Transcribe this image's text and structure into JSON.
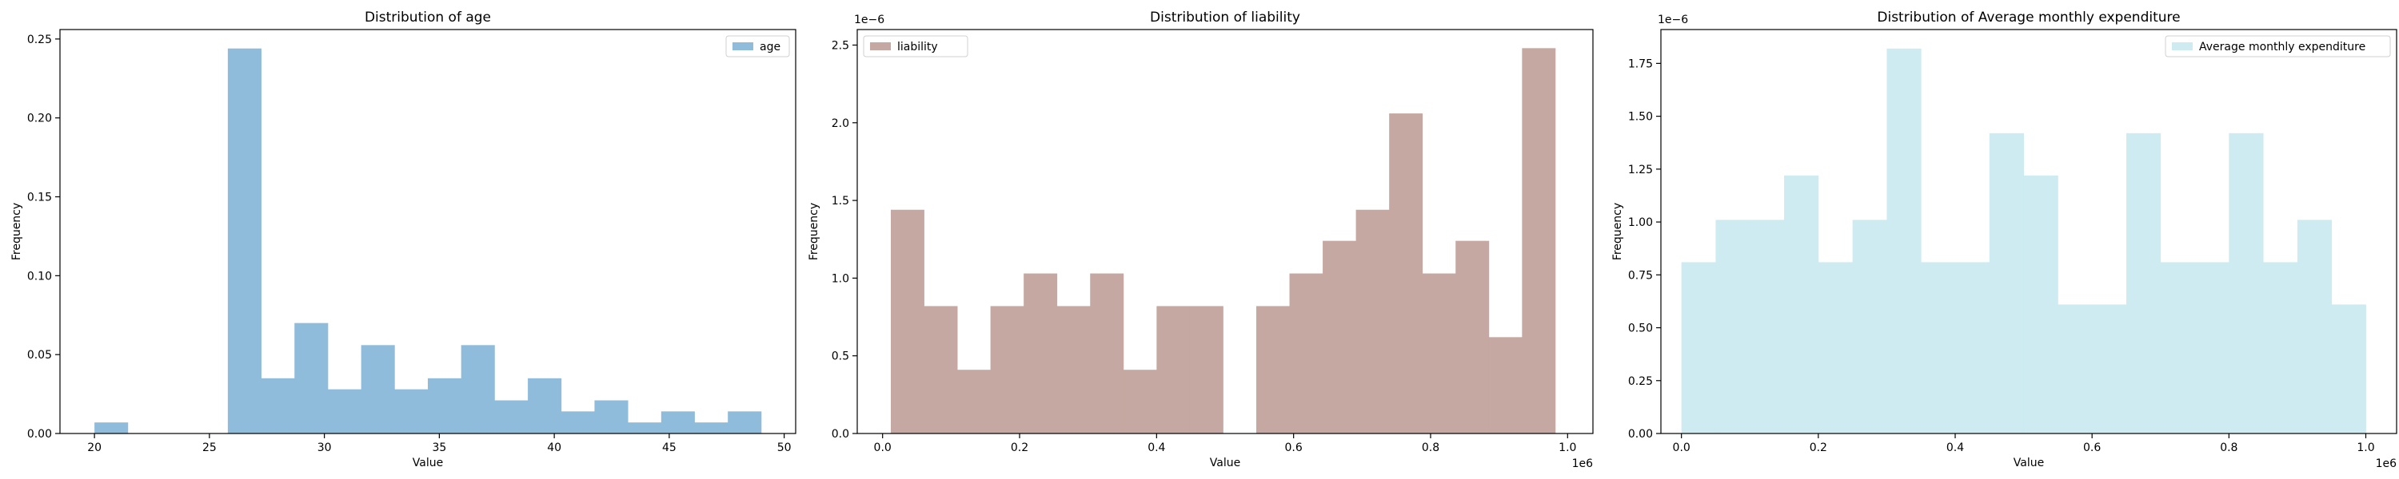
{
  "chart_data": [
    {
      "type": "bar",
      "title": "Distribution of age",
      "xlabel": "Value",
      "ylabel": "Frequency",
      "xlim": [
        18.5,
        50.5
      ],
      "ylim": [
        0,
        0.256
      ],
      "xticks": [
        20,
        25,
        30,
        35,
        40,
        45,
        50
      ],
      "xtick_labels": [
        "20",
        "25",
        "30",
        "35",
        "40",
        "45",
        "50"
      ],
      "yticks": [
        0,
        0.05,
        0.1,
        0.15,
        0.2,
        0.25
      ],
      "ytick_labels": [
        "0.00",
        "0.05",
        "0.10",
        "0.15",
        "0.20",
        "0.25"
      ],
      "x_offset_label": "",
      "y_offset_label": "",
      "legend_location": "top-right",
      "grid": false,
      "series": [
        {
          "name": "age",
          "color": "#8fbcdb",
          "bins": [
            20,
            21.45,
            22.9,
            24.35,
            25.8,
            27.25,
            28.7,
            30.15,
            31.6,
            33.05,
            34.5,
            35.95,
            37.4,
            38.85,
            40.3,
            41.75,
            43.2,
            44.65,
            46.1,
            47.55,
            49
          ],
          "values": [
            0.007,
            0,
            0,
            0,
            0.244,
            0.035,
            0.07,
            0.028,
            0.056,
            0.028,
            0.035,
            0.056,
            0.021,
            0.035,
            0.014,
            0.021,
            0.007,
            0.014,
            0.007,
            0.014
          ]
        }
      ]
    },
    {
      "type": "bar",
      "title": "Distribution of liability",
      "xlabel": "Value",
      "ylabel": "Frequency",
      "xlim": [
        -37000,
        1037000
      ],
      "ylim": [
        0,
        2.6e-06
      ],
      "xticks": [
        0,
        200000,
        400000,
        600000,
        800000,
        1000000
      ],
      "xtick_labels": [
        "0.0",
        "0.2",
        "0.4",
        "0.6",
        "0.8",
        "1.0"
      ],
      "yticks": [
        0,
        5e-07,
        1e-06,
        1.5e-06,
        2e-06,
        2.5e-06
      ],
      "ytick_labels": [
        "0.0",
        "0.5",
        "1.0",
        "1.5",
        "2.0",
        "2.5"
      ],
      "x_offset_label": "1e6",
      "y_offset_label": "1e−6",
      "legend_location": "top-left",
      "grid": false,
      "series": [
        {
          "name": "liability",
          "color": "#c4a8a1",
          "bins": [
            12000,
            60500,
            109000,
            157500,
            206000,
            254500,
            303000,
            351500,
            400000,
            448500,
            497000,
            545500,
            594000,
            642500,
            691000,
            739500,
            788000,
            836500,
            885000,
            933500,
            982000
          ],
          "values": [
            1.44e-06,
            8.2e-07,
            4.1e-07,
            8.2e-07,
            1.03e-06,
            8.2e-07,
            1.03e-06,
            4.1e-07,
            8.2e-07,
            8.2e-07,
            0,
            8.2e-07,
            1.03e-06,
            1.24e-06,
            1.44e-06,
            2.06e-06,
            1.03e-06,
            1.24e-06,
            6.2e-07,
            2.48e-06
          ]
        }
      ]
    },
    {
      "type": "bar",
      "title": "Distribution of Average monthly expenditure",
      "xlabel": "Value",
      "ylabel": "Frequency",
      "xlim": [
        -30000,
        1045000
      ],
      "ylim": [
        0,
        1.91e-06
      ],
      "xticks": [
        0,
        200000,
        400000,
        600000,
        800000,
        1000000
      ],
      "xtick_labels": [
        "0.0",
        "0.2",
        "0.4",
        "0.6",
        "0.8",
        "1.0"
      ],
      "yticks": [
        0,
        2.5e-07,
        5e-07,
        7.5e-07,
        1e-06,
        1.25e-06,
        1.5e-06,
        1.75e-06
      ],
      "ytick_labels": [
        "0.00",
        "0.25",
        "0.50",
        "0.75",
        "1.00",
        "1.25",
        "1.50",
        "1.75"
      ],
      "x_offset_label": "1e6",
      "y_offset_label": "1e−6",
      "legend_location": "top-right",
      "grid": false,
      "series": [
        {
          "name": "Average monthly expenditure",
          "color": "#cdebf0",
          "bins": [
            0,
            50000,
            100000,
            150000,
            200000,
            250000,
            300000,
            350000,
            400000,
            450000,
            500000,
            550000,
            600000,
            650000,
            700000,
            750000,
            800000,
            850000,
            900000,
            950000,
            1000000
          ],
          "values": [
            8.1e-07,
            1.01e-06,
            1.01e-06,
            1.22e-06,
            8.1e-07,
            1.01e-06,
            1.82e-06,
            8.1e-07,
            8.1e-07,
            1.42e-06,
            1.22e-06,
            6.1e-07,
            6.1e-07,
            1.42e-06,
            8.1e-07,
            8.1e-07,
            1.42e-06,
            8.1e-07,
            1.01e-06,
            6.1e-07
          ]
        }
      ]
    }
  ]
}
